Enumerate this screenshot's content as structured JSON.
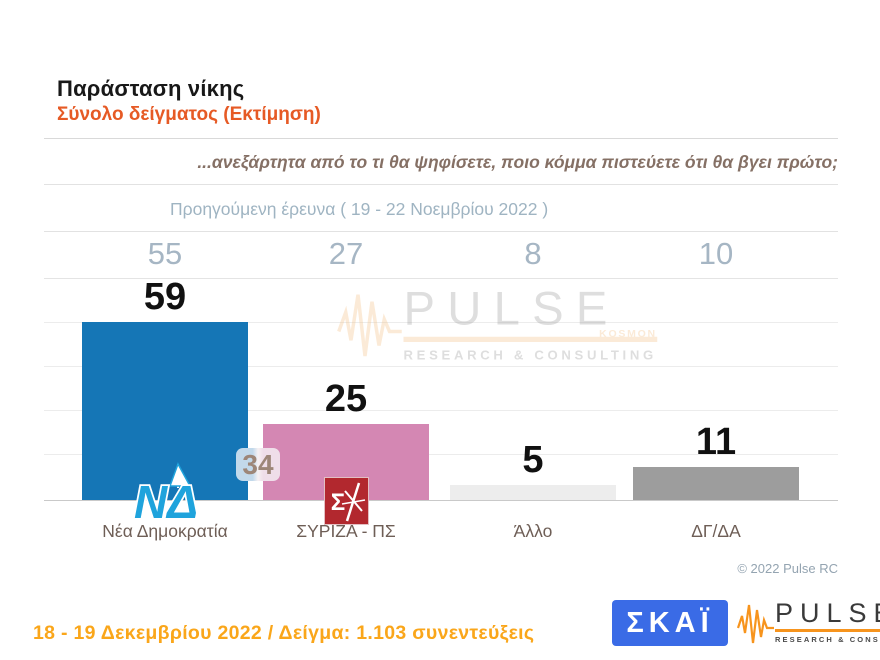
{
  "header": {
    "title": "Παράσταση νίκης",
    "subtitle": "Σύνολο δείγματος   (Εκτίμηση)",
    "question": "...ανεξάρτητα από το τι θα ψηφίσετε, ποιο κόμμα πιστεύετε ότι θα βγει πρώτο;"
  },
  "chart_data": {
    "type": "bar",
    "title": "Παράσταση νίκης",
    "categories": [
      "Νέα Δημοκρατία",
      "ΣΥΡΙΖΑ - ΠΣ",
      "Άλλο",
      "ΔΓ/ΔΑ"
    ],
    "series": [
      {
        "name": "18 - 19 Δεκεμβρίου 2022",
        "values": [
          59,
          25,
          5,
          11
        ]
      },
      {
        "name": "Προηγούμενη έρευνα 19 - 22 Νοεμβρίου 2022",
        "values": [
          55,
          27,
          8,
          10
        ]
      }
    ],
    "previous_survey_label": "Προηγούμενη έρευνα  ( 19 - 22 Νοεμβρίου  2022 )",
    "gap_label": "34",
    "bar_colors": [
      "#1576B6",
      "#D487B3",
      "#EDEDED",
      "#9D9D9D"
    ],
    "ylim": [
      0,
      75
    ],
    "grid": true,
    "legend_position": "none",
    "copyright": "© 2022 Pulse RC"
  },
  "footer": {
    "note": "18 - 19  Δεκεμβρίου  2022  /  Δείγμα:  1.103 συνεντεύξεις"
  },
  "brand": {
    "skai": "ΣΚΑΪ",
    "pulse": {
      "name": "PULSE",
      "sub": "KOSMON",
      "tagline": "RESEARCH & CONSULTING"
    }
  },
  "colors": {
    "accent_orange": "#E65A25",
    "footer_amber": "#FAA61A",
    "prev_gray_blue": "#9FB4C2",
    "label_taupe": "#6E5E56",
    "skai_blue": "#3A6BE6",
    "pulse_orange": "#F7941D",
    "nd_blue": "#1576B6",
    "syriza_pink": "#D487B3"
  }
}
